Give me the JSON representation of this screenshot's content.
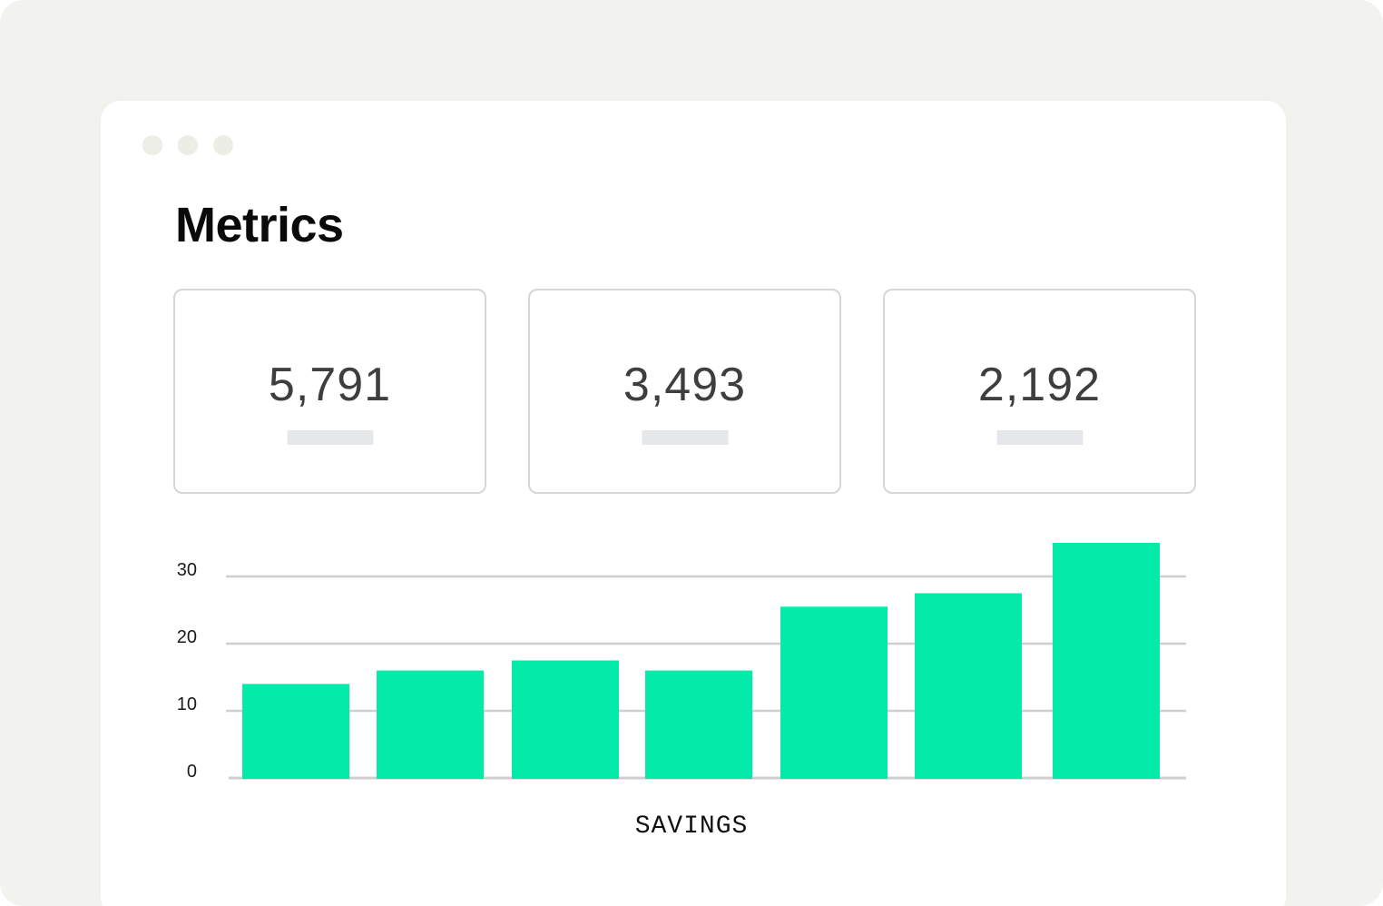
{
  "page": {
    "title": "Metrics"
  },
  "metrics": [
    {
      "value": "5,791"
    },
    {
      "value": "3,493"
    },
    {
      "value": "2,192"
    }
  ],
  "colors": {
    "background": "#f2f3ef",
    "window": "#ffffff",
    "bar": "#04eaa8",
    "gridline": "#cfcfcf",
    "card_border": "#d6d6d6",
    "placeholder": "#e6e7ea"
  },
  "chart_data": {
    "type": "bar",
    "title": "",
    "xlabel": "SAVINGS",
    "ylabel": "",
    "ylim": [
      0,
      30
    ],
    "yticks": [
      0,
      10,
      20,
      30
    ],
    "grid": true,
    "categories": [
      "",
      "",
      "",
      "",
      "",
      "",
      ""
    ],
    "values": [
      14,
      16,
      17.5,
      16,
      25.5,
      27.5,
      35
    ]
  }
}
